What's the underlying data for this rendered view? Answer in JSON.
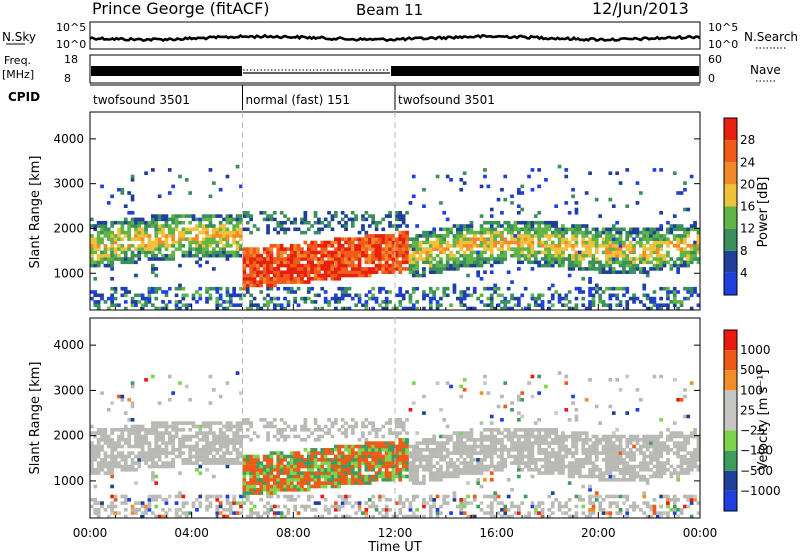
{
  "header": {
    "station": "Prince George (fitACF)",
    "beam": "Beam 11",
    "date": "12/Jun/2013"
  },
  "top_panels": {
    "nsky_label": "N.Sky",
    "nsky_ticks": [
      "10^5",
      "10^0"
    ],
    "nsearch_label": "N.Search",
    "nsearch_ticks": [
      "10^5",
      "10^0"
    ],
    "freq_label": "Freq.",
    "freq_unit": "[MHz]",
    "freq_ticks": [
      "18",
      "8"
    ],
    "nave_label": "Nave",
    "nave_ticks": [
      "60",
      "0"
    ],
    "cpid_label": "CPID",
    "cpid_segments": [
      {
        "label": "twofsound 3501",
        "start_hour": 0,
        "end_hour": 6
      },
      {
        "label": "normal (fast) 151",
        "start_hour": 6,
        "end_hour": 12
      },
      {
        "label": "twofsound 3501",
        "start_hour": 12,
        "end_hour": 24
      }
    ]
  },
  "colors": {
    "power_scale": [
      "#1f3fe0",
      "#1f3f99",
      "#3a8f5a",
      "#5fb545",
      "#f0c23c",
      "#f28a2a",
      "#f05a1a",
      "#e82010"
    ],
    "velocity_scale": [
      "#e81b10",
      "#ef5a18",
      "#f28d28",
      "#c6c6c4",
      "#c6c6c4",
      "#7ed44a",
      "#3f9c5f",
      "#1f3f99",
      "#1f3fe0"
    ],
    "ground_scatter": "#b9b9b5"
  },
  "chart_data": [
    {
      "type": "heatmap",
      "name": "power",
      "ylabel": "Slant Range [km]",
      "xlabel": "Time UT",
      "x_ticks": [
        "00:00",
        "04:00",
        "08:00",
        "12:00",
        "16:00",
        "20:00",
        "00:00"
      ],
      "y_ticks": [
        1000,
        2000,
        3000,
        4000
      ],
      "xlim_hours": [
        0,
        24
      ],
      "ylim_km": [
        180,
        4600
      ],
      "colorbar_label": "Power [dB]",
      "colorbar_ticks": [
        4,
        8,
        12,
        16,
        20,
        24,
        28
      ],
      "colorbar_range": [
        0,
        32
      ]
    },
    {
      "type": "heatmap",
      "name": "velocity",
      "ylabel": "Slant Range [km]",
      "xlabel": "Time UT",
      "x_ticks": [
        "00:00",
        "04:00",
        "08:00",
        "12:00",
        "16:00",
        "20:00",
        "00:00"
      ],
      "y_ticks": [
        1000,
        2000,
        3000,
        4000
      ],
      "xlim_hours": [
        0,
        24
      ],
      "ylim_km": [
        180,
        4600
      ],
      "colorbar_label": "Velocity [m s⁻¹]",
      "colorbar_ticks": [
        "1000",
        "500",
        "100",
        "25",
        "−25",
        "−100",
        "−500",
        "−1000"
      ]
    }
  ],
  "xaxis_label": "Time UT"
}
